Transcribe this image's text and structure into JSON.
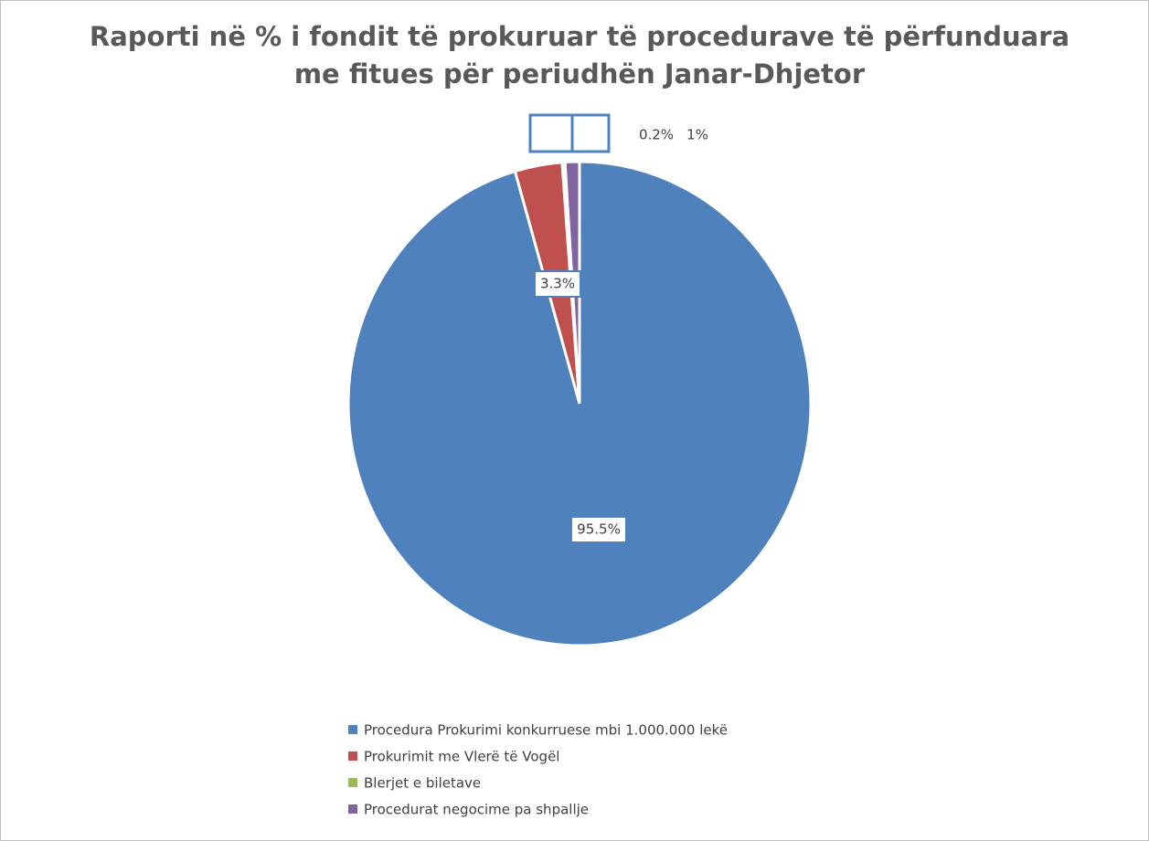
{
  "chart_data": {
    "type": "pie",
    "title": [
      "Raporti në % i fondit të prokuruar të procedurave të përfunduara",
      "me fitues për periudhën Janar-Dhjetor"
    ],
    "categories": [
      "Procedura Prokurimi konkurruese mbi 1.000.000 lekë",
      "Prokurimit me Vlerë të Vogël",
      "Blerjet e biletave",
      "Procedurat negocime pa shpallje"
    ],
    "values": [
      95.5,
      3.3,
      0.2,
      1
    ],
    "value_labels": [
      "95.5%",
      "3.3%",
      "0.2%",
      "1%"
    ],
    "colors": [
      "#4f81bd",
      "#c0504d",
      "#9bbb59",
      "#8064a2"
    ],
    "legend": "bottom"
  }
}
